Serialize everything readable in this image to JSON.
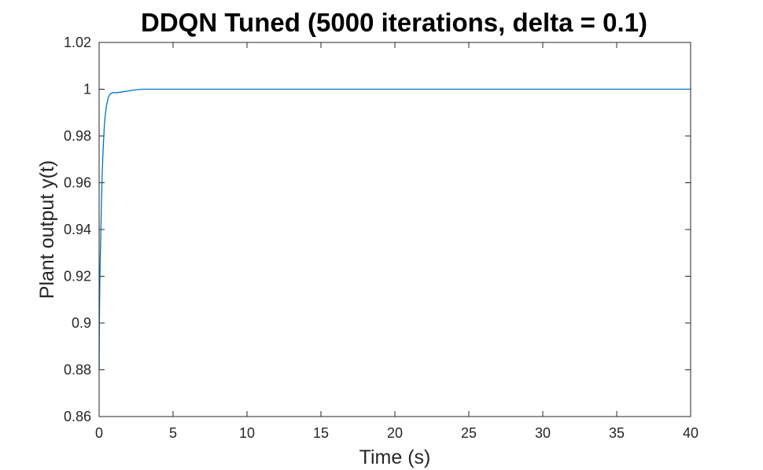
{
  "chart_data": {
    "type": "line",
    "title": "DDQN Tuned (5000 iterations, delta = 0.1)",
    "xlabel": "Time (s)",
    "ylabel": "Plant output y(t)",
    "xlim": [
      0,
      40
    ],
    "ylim": [
      0.86,
      1.02
    ],
    "xticks": [
      "0",
      "5",
      "10",
      "15",
      "20",
      "25",
      "30",
      "35",
      "40"
    ],
    "yticks": [
      "0.86",
      "0.88",
      "0.9",
      "0.92",
      "0.94",
      "0.96",
      "0.98",
      "1",
      "1.02"
    ],
    "grid": false,
    "line_color": "#0072BD",
    "series": [
      {
        "x": [
          0,
          0.02,
          0.05,
          0.08,
          0.12,
          0.16,
          0.2,
          0.25,
          0.3,
          0.35,
          0.4,
          0.5,
          0.6,
          0.7,
          0.8,
          0.9,
          1.0,
          1.2,
          1.5,
          2.0,
          2.5,
          3.0,
          3.5,
          5,
          10,
          15,
          20,
          25,
          30,
          35,
          40
        ],
        "y": [
          0.88,
          0.902,
          0.918,
          0.928,
          0.94,
          0.952,
          0.962,
          0.971,
          0.978,
          0.984,
          0.988,
          0.993,
          0.996,
          0.9975,
          0.9982,
          0.9985,
          0.9985,
          0.9985,
          0.9988,
          0.9993,
          0.9998,
          1.0,
          1.0,
          1.0,
          1.0,
          1.0,
          1.0,
          1.0,
          1.0,
          1.0,
          1.0
        ]
      }
    ]
  }
}
